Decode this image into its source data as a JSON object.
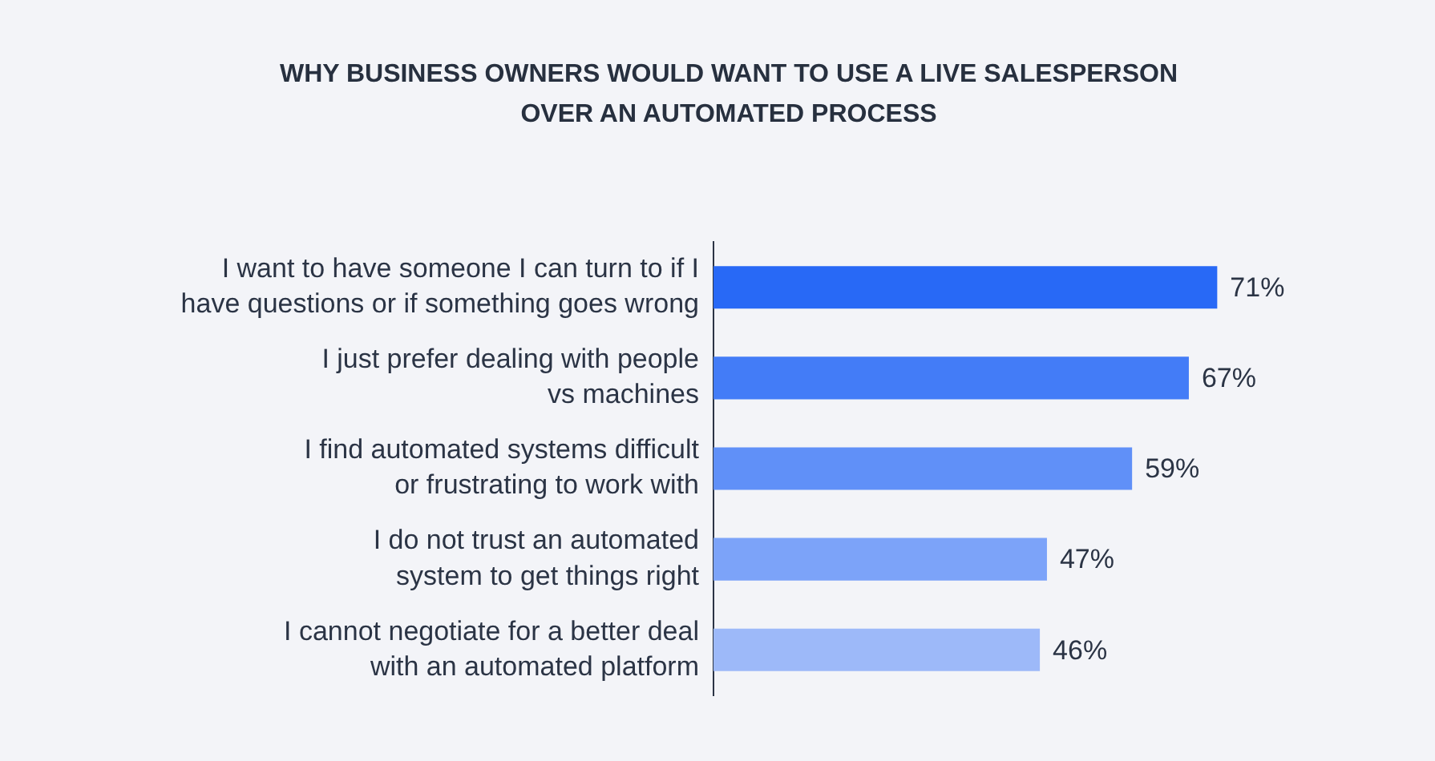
{
  "chart_data": {
    "type": "bar",
    "orientation": "horizontal",
    "title": "WHY BUSINESS OWNERS WOULD WANT TO USE A LIVE SALESPERSON OVER AN AUTOMATED PROCESS",
    "categories": [
      "I want to have someone I can turn to if I\nhave questions or if something goes wrong",
      "I just prefer dealing with people\nvs machines",
      "I find automated systems difficult\nor frustrating to work with",
      "I do not trust an automated\nsystem to get things right",
      "I cannot negotiate for a better deal\nwith an automated platform"
    ],
    "values": [
      71,
      67,
      59,
      47,
      46
    ],
    "colors": [
      "#2869f6",
      "#437cf7",
      "#6090f8",
      "#7ca3f9",
      "#9db9f9"
    ],
    "value_labels": [
      "71%",
      "67%",
      "59%",
      "47%",
      "46%"
    ]
  }
}
